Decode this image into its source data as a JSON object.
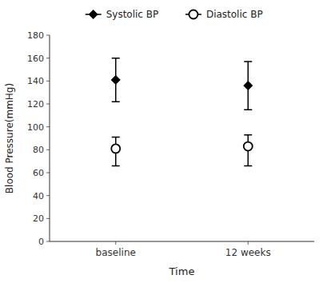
{
  "chart_data": {
    "type": "errorbar",
    "categories": [
      "baseline",
      "12 weeks"
    ],
    "series": [
      {
        "name": "Systolic BP",
        "color": "#000000",
        "marker": "diamond",
        "values": [
          141,
          136
        ],
        "err_upper": [
          19,
          21
        ],
        "err_lower": [
          19,
          21
        ]
      },
      {
        "name": "Diastolic BP",
        "color": "#000000",
        "marker": "open-circle",
        "values": [
          81,
          83
        ],
        "err_upper": [
          10,
          10
        ],
        "err_lower": [
          15,
          17
        ]
      }
    ],
    "ylim": [
      0,
      180
    ],
    "yticks": [
      0,
      20,
      40,
      60,
      80,
      100,
      120,
      140,
      160,
      180
    ],
    "ylabel": "Blood Pressure(mmHg)",
    "xlabel": "Time",
    "legend": "top"
  }
}
